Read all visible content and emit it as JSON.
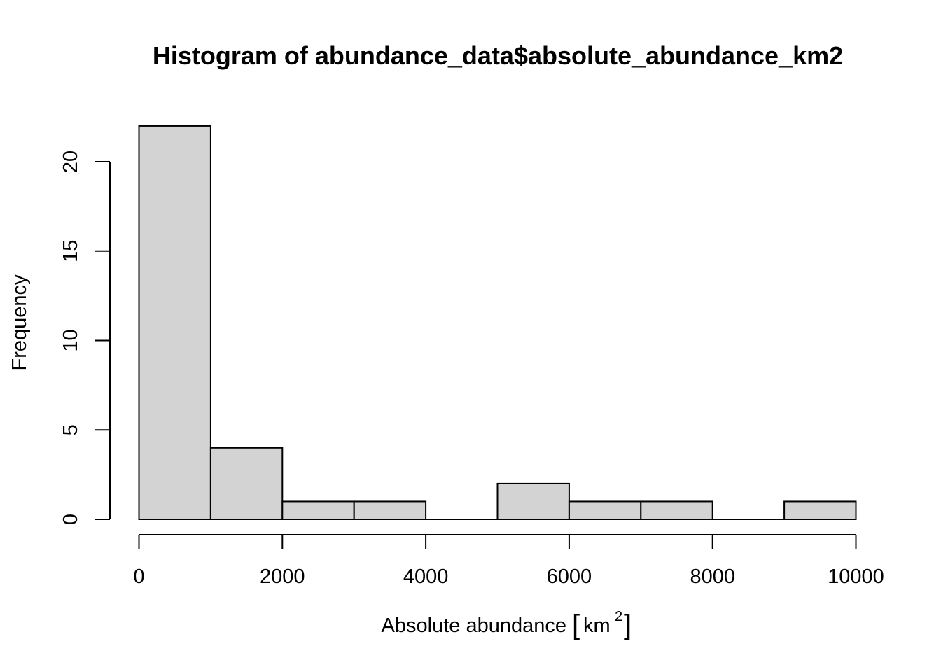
{
  "chart_data": {
    "type": "bar",
    "title": "Histogram of abundance_data$absolute_abundance_km2",
    "xlabel": "Absolute abundance",
    "xlabel_unit": "km",
    "xlabel_unit_exponent": "2",
    "ylabel": "Frequency",
    "bin_edges": [
      0,
      1000,
      2000,
      3000,
      4000,
      5000,
      6000,
      7000,
      8000,
      9000,
      10000
    ],
    "values": [
      22,
      4,
      1,
      1,
      0,
      2,
      1,
      1,
      0,
      1
    ],
    "xlim": [
      0,
      10000
    ],
    "ylim": [
      0,
      22
    ],
    "x_ticks": [
      0,
      2000,
      4000,
      6000,
      8000,
      10000
    ],
    "x_tick_labels": [
      "0",
      "2000",
      "4000",
      "6000",
      "8000",
      "10000"
    ],
    "y_ticks": [
      0,
      5,
      10,
      15,
      20
    ],
    "y_tick_labels": [
      "0",
      "5",
      "10",
      "15",
      "20"
    ],
    "grid": false,
    "legend": "none",
    "colors": {
      "bar_fill": "#d3d3d3",
      "bar_stroke": "#000000"
    }
  }
}
